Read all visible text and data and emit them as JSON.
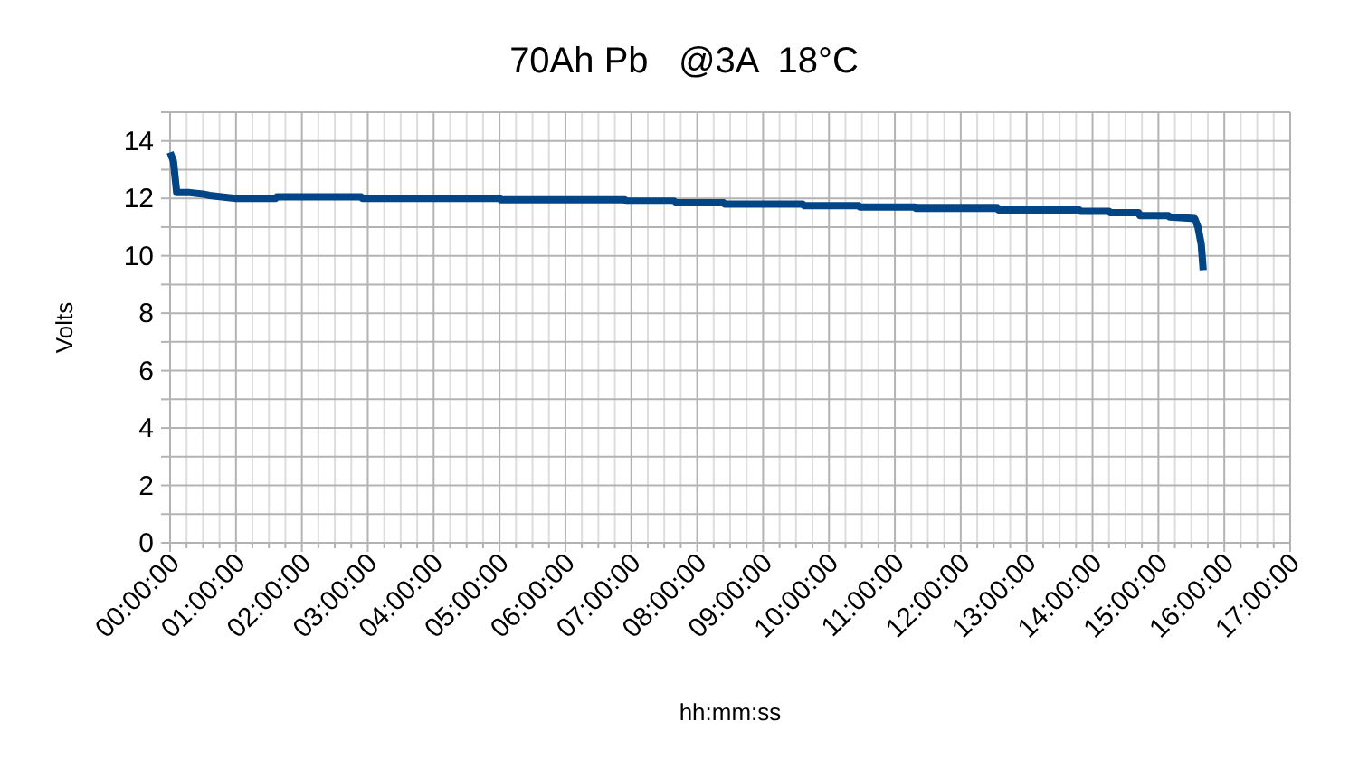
{
  "chart_data": {
    "type": "line",
    "title": "70Ah Pb   @3A  18°C",
    "xlabel": "hh:mm:ss",
    "ylabel": "Volts",
    "x": [
      0,
      0.05,
      0.1,
      0.3,
      0.5,
      0.6,
      1,
      1.6,
      1.62,
      2.9,
      2.92,
      5.0,
      5.02,
      6.9,
      6.92,
      7.65,
      7.67,
      8.4,
      8.42,
      9.6,
      9.62,
      10.45,
      10.47,
      11.3,
      11.32,
      12.55,
      12.57,
      13.8,
      13.82,
      14.25,
      14.27,
      14.7,
      14.72,
      15.15,
      15.17,
      15.55,
      15.6,
      15.65,
      15.68
    ],
    "series": [
      {
        "color": "#004586",
        "values": [
          13.6,
          13.3,
          12.2,
          12.2,
          12.15,
          12.1,
          12.0,
          12.0,
          12.05,
          12.05,
          12.0,
          12.0,
          11.95,
          11.95,
          11.9,
          11.9,
          11.85,
          11.85,
          11.8,
          11.8,
          11.75,
          11.75,
          11.7,
          11.7,
          11.65,
          11.65,
          11.6,
          11.6,
          11.55,
          11.55,
          11.5,
          11.5,
          11.4,
          11.4,
          11.35,
          11.3,
          11.0,
          10.4,
          9.5
        ]
      }
    ],
    "xlim": [
      0,
      17
    ],
    "ylim": [
      0,
      15
    ],
    "xticks": [
      {
        "value": 0,
        "label": "00:00:00"
      },
      {
        "value": 0.25,
        "label": null
      },
      {
        "value": 0.5,
        "label": null
      },
      {
        "value": 0.75,
        "label": null
      },
      {
        "value": 1,
        "label": "01:00:00"
      },
      {
        "value": 1.25,
        "label": null
      },
      {
        "value": 1.5,
        "label": null
      },
      {
        "value": 1.75,
        "label": null
      },
      {
        "value": 2,
        "label": "02:00:00"
      },
      {
        "value": 2.25,
        "label": null
      },
      {
        "value": 2.5,
        "label": null
      },
      {
        "value": 2.75,
        "label": null
      },
      {
        "value": 3,
        "label": "03:00:00"
      },
      {
        "value": 3.25,
        "label": null
      },
      {
        "value": 3.5,
        "label": null
      },
      {
        "value": 3.75,
        "label": null
      },
      {
        "value": 4,
        "label": "04:00:00"
      },
      {
        "value": 4.25,
        "label": null
      },
      {
        "value": 4.5,
        "label": null
      },
      {
        "value": 4.75,
        "label": null
      },
      {
        "value": 5,
        "label": "05:00:00"
      },
      {
        "value": 5.25,
        "label": null
      },
      {
        "value": 5.5,
        "label": null
      },
      {
        "value": 5.75,
        "label": null
      },
      {
        "value": 6,
        "label": "06:00:00"
      },
      {
        "value": 6.25,
        "label": null
      },
      {
        "value": 6.5,
        "label": null
      },
      {
        "value": 6.75,
        "label": null
      },
      {
        "value": 7,
        "label": "07:00:00"
      },
      {
        "value": 7.25,
        "label": null
      },
      {
        "value": 7.5,
        "label": null
      },
      {
        "value": 7.75,
        "label": null
      },
      {
        "value": 8,
        "label": "08:00:00"
      },
      {
        "value": 8.25,
        "label": null
      },
      {
        "value": 8.5,
        "label": null
      },
      {
        "value": 8.75,
        "label": null
      },
      {
        "value": 9,
        "label": "09:00:00"
      },
      {
        "value": 9.25,
        "label": null
      },
      {
        "value": 9.5,
        "label": null
      },
      {
        "value": 9.75,
        "label": null
      },
      {
        "value": 10,
        "label": "10:00:00"
      },
      {
        "value": 10.25,
        "label": null
      },
      {
        "value": 10.5,
        "label": null
      },
      {
        "value": 10.75,
        "label": null
      },
      {
        "value": 11,
        "label": "11:00:00"
      },
      {
        "value": 11.25,
        "label": null
      },
      {
        "value": 11.5,
        "label": null
      },
      {
        "value": 11.75,
        "label": null
      },
      {
        "value": 12,
        "label": "12:00:00"
      },
      {
        "value": 12.25,
        "label": null
      },
      {
        "value": 12.5,
        "label": null
      },
      {
        "value": 12.75,
        "label": null
      },
      {
        "value": 13,
        "label": "13:00:00"
      },
      {
        "value": 13.25,
        "label": null
      },
      {
        "value": 13.5,
        "label": null
      },
      {
        "value": 13.75,
        "label": null
      },
      {
        "value": 14,
        "label": "14:00:00"
      },
      {
        "value": 14.25,
        "label": null
      },
      {
        "value": 14.5,
        "label": null
      },
      {
        "value": 14.75,
        "label": null
      },
      {
        "value": 15,
        "label": "15:00:00"
      },
      {
        "value": 15.25,
        "label": null
      },
      {
        "value": 15.5,
        "label": null
      },
      {
        "value": 15.75,
        "label": null
      },
      {
        "value": 16,
        "label": "16:00:00"
      },
      {
        "value": 16.25,
        "label": null
      },
      {
        "value": 16.5,
        "label": null
      },
      {
        "value": 16.75,
        "label": null
      },
      {
        "value": 17,
        "label": "17:00:00"
      }
    ],
    "yticks": [
      0,
      {
        "value": 1,
        "label": null
      },
      2,
      {
        "value": 3,
        "label": null
      },
      4,
      {
        "value": 5,
        "label": null
      },
      6,
      {
        "value": 7,
        "label": null
      },
      8,
      {
        "value": 9,
        "label": null
      },
      10,
      {
        "value": 11,
        "label": null
      },
      12,
      {
        "value": 13,
        "label": null
      },
      14,
      {
        "value": 15,
        "label": null
      }
    ],
    "grid": true,
    "line_style": "solid",
    "marker": "none"
  }
}
